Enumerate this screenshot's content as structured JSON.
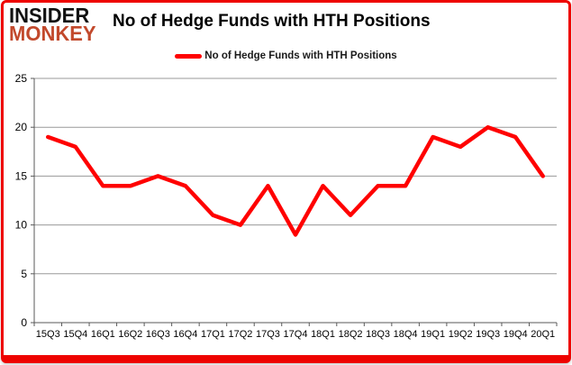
{
  "brand": {
    "line1": "INSIDER",
    "line2": "MONKEY"
  },
  "header": {
    "title": "No of Hedge Funds with HTH Positions"
  },
  "legend": {
    "label": "No of Hedge Funds with HTH Positions"
  },
  "colors": {
    "series_line": "#ff0000",
    "card_border": "#ee0200",
    "logo_accent": "#c2492c",
    "gridline": "#999999",
    "axis": "#595959",
    "tick_label": "#000000"
  },
  "chart_data": {
    "type": "line",
    "title": "No of Hedge Funds with HTH Positions",
    "categories": [
      "15Q3",
      "15Q4",
      "16Q1",
      "16Q2",
      "16Q3",
      "16Q4",
      "17Q1",
      "17Q2",
      "17Q3",
      "17Q4",
      "18Q1",
      "18Q2",
      "18Q3",
      "18Q4",
      "19Q1",
      "19Q2",
      "19Q3",
      "19Q4",
      "20Q1"
    ],
    "series": [
      {
        "name": "No of Hedge Funds with HTH Positions",
        "values": [
          19,
          18,
          14,
          14,
          15,
          14,
          11,
          10,
          14,
          9,
          14,
          11,
          14,
          14,
          19,
          18,
          20,
          19,
          15
        ]
      }
    ],
    "xlabel": "",
    "ylabel": "",
    "ylim": [
      0,
      25
    ],
    "yticks": [
      0,
      5,
      10,
      15,
      20,
      25
    ],
    "grid": true,
    "legend_position": "top-center",
    "line_color": "#ff0000"
  }
}
